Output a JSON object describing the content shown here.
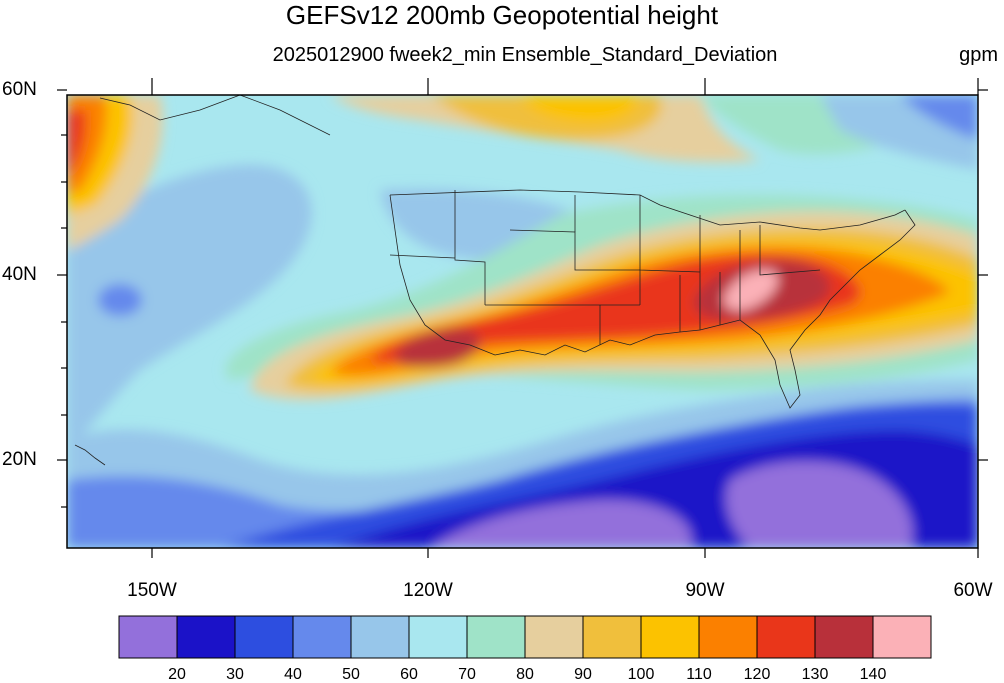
{
  "title": "GEFSv12 200mb Geopotential height",
  "subtitle": "2025012900 fweek2_min Ensemble_Standard_Deviation",
  "units": "gpm",
  "map": {
    "region": "North Pacific / North America",
    "lat_labels": [
      "60N",
      "40N",
      "20N"
    ],
    "lon_labels": [
      "150W",
      "120W",
      "90W",
      "60W"
    ],
    "lat_range": [
      10,
      60
    ],
    "lon_range": [
      -160,
      -60
    ]
  },
  "colorbar": {
    "levels": [
      "20",
      "30",
      "40",
      "50",
      "60",
      "70",
      "80",
      "90",
      "100",
      "110",
      "120",
      "130",
      "140"
    ],
    "colors": [
      "#9370db",
      "#1b12c8",
      "#2d4ee0",
      "#6589ec",
      "#97c6ea",
      "#a9e7ef",
      "#9fe3c8",
      "#e6cf9e",
      "#f0bf3c",
      "#fcc200",
      "#fb8000",
      "#e9361a",
      "#b8303a",
      "#fbb1b7"
    ]
  }
}
